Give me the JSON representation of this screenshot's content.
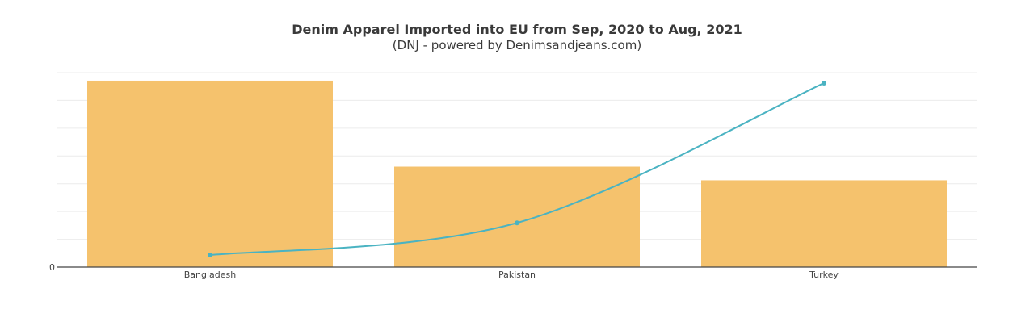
{
  "chart_data": {
    "type": "bar",
    "title": "Denim Apparel Imported into EU from Sep, 2020 to Aug, 2021",
    "subtitle": "(DNJ - powered by Denimsandjeans.com)",
    "categories": [
      "Bangladesh",
      "Pakistan",
      "Turkey"
    ],
    "series": [
      {
        "type": "bar",
        "values": [
          232,
          125,
          108
        ],
        "color": "#f5c26d"
      },
      {
        "type": "line",
        "values": [
          15,
          55,
          229
        ],
        "color": "#4ab3c2"
      }
    ],
    "y_tick_labels": [
      "0"
    ],
    "ylim": [
      0,
      242
    ],
    "grid": true,
    "legend": "none"
  }
}
